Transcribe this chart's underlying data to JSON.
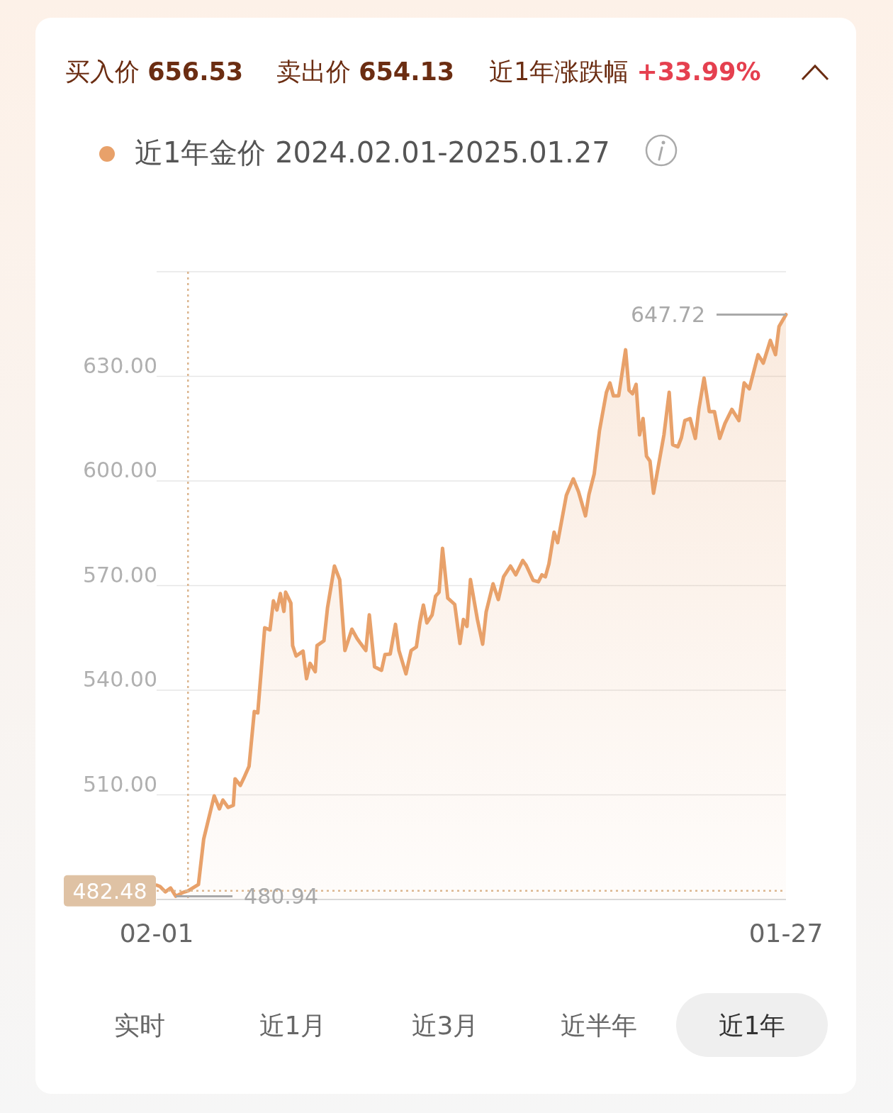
{
  "chart_data": {
    "type": "area",
    "title": null,
    "annotations": [
      "买入价 656.53",
      "卖出价 654.13",
      "近1年涨跌幅 +33.99%",
      "480.94",
      "647.72",
      "实时",
      "近1月",
      "近3月",
      "近半年",
      "近1年"
    ],
    "xlim": [
      "2024-02-01",
      "2025-01-27"
    ],
    "xticks": [
      {
        "value": "2024-02-01",
        "label": "02-01"
      },
      {
        "value": "2025-01-27",
        "label": "01-27"
      }
    ],
    "ylim": [
      480,
      660
    ],
    "yticks": [
      {
        "value": 510,
        "label": "510.00"
      },
      {
        "value": 540,
        "label": "540.00"
      },
      {
        "value": 570,
        "label": "570.00"
      },
      {
        "value": 600,
        "label": "600.00"
      },
      {
        "value": 630,
        "label": "630.00"
      },
      {
        "value": 660,
        "label": null
      }
    ],
    "grid": "y",
    "legend": "top left",
    "ref_lines": [
      {
        "axis": "y",
        "value": 482.48,
        "label": "482.48",
        "color": "#dcb68f",
        "line_style": "dotted"
      },
      {
        "axis": "x",
        "value": "2024-02-19",
        "label": null,
        "color": "#dcb68f",
        "line_style": "dotted"
      }
    ],
    "series": [
      {
        "name": "近1年金价 2024.02.01-2025.01.27",
        "color": "#e8a16a",
        "x": [
          "2024-02-01",
          "2024-02-03",
          "2024-02-06",
          "2024-02-09",
          "2024-02-12",
          "2024-02-16",
          "2024-02-19",
          "2024-02-25",
          "2024-02-28",
          "2024-03-05",
          "2024-03-08",
          "2024-03-10",
          "2024-03-13",
          "2024-03-16",
          "2024-03-17",
          "2024-03-20",
          "2024-03-22",
          "2024-03-25",
          "2024-03-28",
          "2024-03-30",
          "2024-04-03",
          "2024-04-06",
          "2024-04-08",
          "2024-04-10",
          "2024-04-12",
          "2024-04-14",
          "2024-04-15",
          "2024-04-18",
          "2024-04-19",
          "2024-04-21",
          "2024-04-25",
          "2024-04-27",
          "2024-04-29",
          "2024-05-02",
          "2024-05-03",
          "2024-05-07",
          "2024-05-09",
          "2024-05-13",
          "2024-05-16",
          "2024-05-19",
          "2024-05-23",
          "2024-05-26",
          "2024-05-28",
          "2024-05-31",
          "2024-06-02",
          "2024-06-05",
          "2024-06-09",
          "2024-06-11",
          "2024-06-14",
          "2024-06-17",
          "2024-06-19",
          "2024-06-23",
          "2024-06-26",
          "2024-06-29",
          "2024-07-01",
          "2024-07-03",
          "2024-07-05",
          "2024-07-08",
          "2024-07-10",
          "2024-07-12",
          "2024-07-14",
          "2024-07-17",
          "2024-07-21",
          "2024-07-24",
          "2024-07-26",
          "2024-07-28",
          "2024-07-30",
          "2024-08-03",
          "2024-08-06",
          "2024-08-08",
          "2024-08-12",
          "2024-08-15",
          "2024-08-18",
          "2024-08-22",
          "2024-08-25",
          "2024-08-29",
          "2024-08-31",
          "2024-09-04",
          "2024-09-07",
          "2024-09-09",
          "2024-09-11",
          "2024-09-13",
          "2024-09-16",
          "2024-09-18",
          "2024-09-23",
          "2024-09-27",
          "2024-09-30",
          "2024-10-04",
          "2024-10-06",
          "2024-10-09",
          "2024-10-12",
          "2024-10-16",
          "2024-10-18",
          "2024-10-20",
          "2024-10-23",
          "2024-10-27",
          "2024-10-29",
          "2024-10-31",
          "2024-11-02",
          "2024-11-04",
          "2024-11-06",
          "2024-11-08",
          "2024-11-10",
          "2024-11-12",
          "2024-11-18",
          "2024-11-21",
          "2024-11-23",
          "2024-11-26",
          "2024-11-28",
          "2024-11-30",
          "2024-12-03",
          "2024-12-06",
          "2024-12-08",
          "2024-12-11",
          "2024-12-14",
          "2024-12-17",
          "2024-12-20",
          "2024-12-23",
          "2024-12-27",
          "2024-12-31",
          "2025-01-03",
          "2025-01-06",
          "2025-01-11",
          "2025-01-14",
          "2025-01-18",
          "2025-01-21",
          "2025-01-23",
          "2025-01-27"
        ],
        "values": [
          484.1,
          483.7,
          482.2,
          483.3,
          480.94,
          482.0,
          482.48,
          484.3,
          497.3,
          509.7,
          506.0,
          508.5,
          506.4,
          507.0,
          514.6,
          512.7,
          514.8,
          518.2,
          533.9,
          533.5,
          557.9,
          557.3,
          565.6,
          563.0,
          567.7,
          562.6,
          568.1,
          565.0,
          552.8,
          549.8,
          551.2,
          543.3,
          547.7,
          545.3,
          552.8,
          554.2,
          563.6,
          575.6,
          571.7,
          551.4,
          557.5,
          554.8,
          553.4,
          551.4,
          561.6,
          546.7,
          545.7,
          550.2,
          550.4,
          558.9,
          551.4,
          544.7,
          551.4,
          552.4,
          559.3,
          564.4,
          559.3,
          561.6,
          567.0,
          568.1,
          580.7,
          566.4,
          564.6,
          553.4,
          560.3,
          558.3,
          571.7,
          560.3,
          553.2,
          562.4,
          570.5,
          566.0,
          572.5,
          575.6,
          573.1,
          577.2,
          575.8,
          571.5,
          571.1,
          573.1,
          572.5,
          576.2,
          585.3,
          582.3,
          595.9,
          600.6,
          596.9,
          590.0,
          596.1,
          602.0,
          614.4,
          625.4,
          628.1,
          624.4,
          624.4,
          637.6,
          626.0,
          625.0,
          627.7,
          613.2,
          617.9,
          607.1,
          605.7,
          596.5,
          613.2,
          625.4,
          610.4,
          609.8,
          612.4,
          617.3,
          617.9,
          612.2,
          620.5,
          629.5,
          619.9,
          619.9,
          612.2,
          616.5,
          620.5,
          617.3,
          628.1,
          626.4,
          636.2,
          633.8,
          640.3,
          636.2,
          644.3,
          647.72
        ]
      }
    ]
  }
}
